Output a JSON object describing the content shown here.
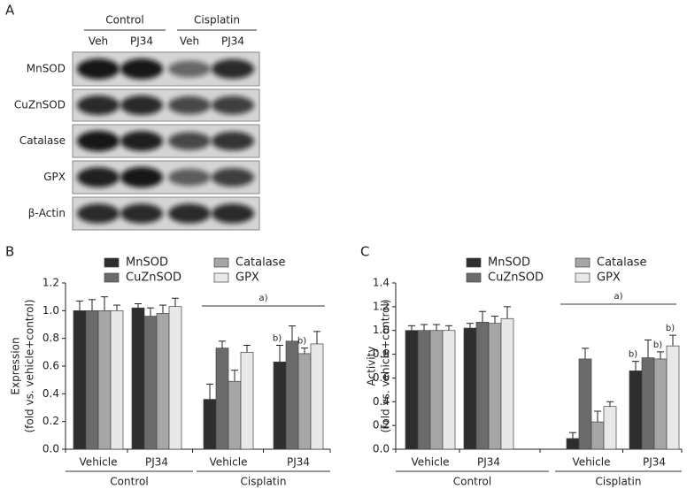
{
  "panel_a": {
    "label": "A",
    "groups": [
      {
        "label": "Control",
        "lanes": [
          "Veh",
          "PJ34"
        ]
      },
      {
        "label": "Cisplatin",
        "lanes": [
          "Veh",
          "PJ34"
        ]
      }
    ],
    "rows": [
      "MnSOD",
      "CuZnSOD",
      "Catalase",
      "GPX",
      "β-Actin"
    ]
  },
  "chart_data": [
    {
      "type": "bar",
      "panel": "B",
      "ylabel": [
        "Expression",
        "(fold vs. vehicle+control)"
      ],
      "categories": [
        "Vehicle",
        "PJ34",
        "Vehicle",
        "PJ34"
      ],
      "groups": [
        "Control",
        "Cisplatin"
      ],
      "bracket_label": "a)",
      "ylim": [
        0,
        1.2
      ],
      "yticks": [
        {
          "value": 0,
          "label": "0.0"
        },
        0.2,
        0.4,
        0.6,
        0.8,
        {
          "value": 1,
          "label": "1.0"
        },
        1.2
      ],
      "series": [
        {
          "name": "MnSOD",
          "color": "#2e2e2e",
          "values": [
            1.0,
            1.02,
            0.36,
            0.63
          ],
          "errors": [
            0.07,
            0.03,
            0.11,
            0.12
          ],
          "annotations": [
            null,
            null,
            null,
            "b)"
          ]
        },
        {
          "name": "CuZnSOD",
          "color": "#6b6b6b",
          "values": [
            1.0,
            0.96,
            0.73,
            0.78
          ],
          "errors": [
            0.08,
            0.06,
            0.05,
            0.11
          ],
          "annotations": [
            null,
            null,
            null,
            null
          ]
        },
        {
          "name": "Catalase",
          "color": "#a6a6a6",
          "values": [
            1.0,
            0.98,
            0.49,
            0.69
          ],
          "errors": [
            0.1,
            0.06,
            0.08,
            0.04
          ],
          "annotations": [
            null,
            null,
            null,
            "b)"
          ]
        },
        {
          "name": "GPX",
          "color": "#e8e8e8",
          "values": [
            1.0,
            1.03,
            0.7,
            0.76
          ],
          "errors": [
            0.04,
            0.06,
            0.05,
            0.09
          ],
          "annotations": [
            null,
            null,
            null,
            null
          ]
        }
      ]
    },
    {
      "type": "bar",
      "panel": "C",
      "ylabel": [
        "Activity",
        "(fold vs. vehicle+control)"
      ],
      "categories": [
        "Vehicle",
        "PJ34",
        "Vehicle",
        "PJ34"
      ],
      "groups": [
        "Control",
        "Cisplatin"
      ],
      "bracket_label": "a)",
      "ylim": [
        0,
        1.4
      ],
      "yticks": [
        {
          "value": 0,
          "label": "0.0"
        },
        0.2,
        0.4,
        0.6,
        0.8,
        {
          "value": 1,
          "label": "1.0"
        },
        1.2,
        1.4
      ],
      "series": [
        {
          "name": "MnSOD",
          "color": "#2e2e2e",
          "values": [
            1.0,
            1.02,
            0.09,
            0.66
          ],
          "errors": [
            0.04,
            0.04,
            0.05,
            0.08
          ],
          "annotations": [
            null,
            null,
            null,
            "b)"
          ]
        },
        {
          "name": "CuZnSOD",
          "color": "#6b6b6b",
          "values": [
            1.0,
            1.07,
            0.76,
            0.77
          ],
          "errors": [
            0.05,
            0.09,
            0.09,
            0.15
          ],
          "annotations": [
            null,
            null,
            null,
            null
          ]
        },
        {
          "name": "Catalase",
          "color": "#a6a6a6",
          "values": [
            1.0,
            1.06,
            0.23,
            0.76
          ],
          "errors": [
            0.05,
            0.06,
            0.09,
            0.06
          ],
          "annotations": [
            null,
            null,
            null,
            "b)"
          ]
        },
        {
          "name": "GPX",
          "color": "#e8e8e8",
          "values": [
            1.0,
            1.1,
            0.36,
            0.87
          ],
          "errors": [
            0.04,
            0.1,
            0.04,
            0.09
          ],
          "annotations": [
            null,
            null,
            null,
            "b)"
          ]
        }
      ]
    }
  ]
}
